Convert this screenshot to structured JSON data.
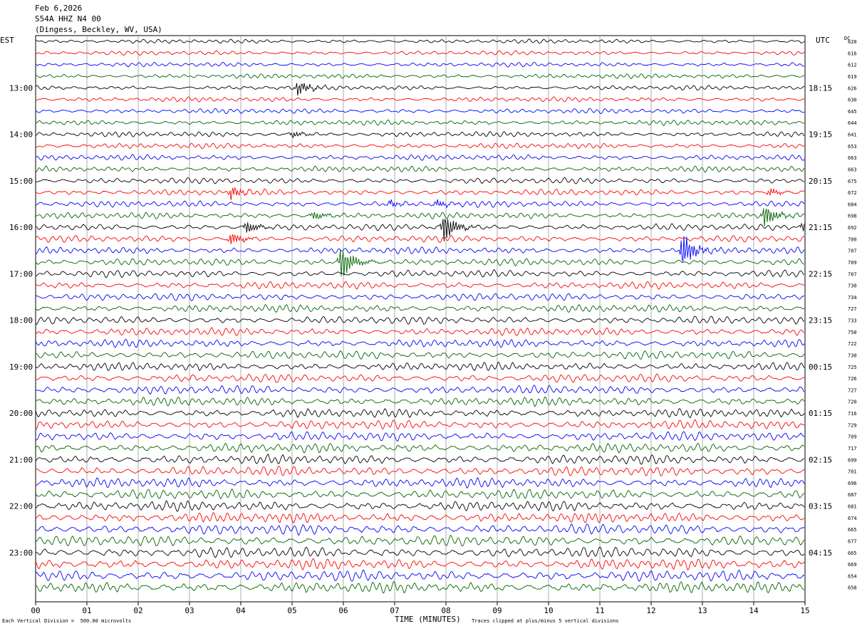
{
  "header": {
    "date": "Feb 6,2026",
    "station": "S54A HHZ N4 00",
    "location": "(Dingess, Beckley, WV, USA)"
  },
  "left_timezone": "EST",
  "right_timezone": "UTC",
  "dc_label": "DC",
  "footer": {
    "scale_note": "Each Vertical Division =  500.00 microvolts",
    "clip_note": "Traces clipped at plus/minus 5 vertical divisions"
  },
  "colors": [
    "#000000",
    "#ff0000",
    "#0000ff",
    "#006400"
  ],
  "chart_data": {
    "type": "line",
    "title": "",
    "xlabel": "TIME (MINUTES)",
    "x_ticks": [
      "00",
      "01",
      "02",
      "03",
      "04",
      "05",
      "06",
      "07",
      "08",
      "09",
      "10",
      "11",
      "12",
      "13",
      "14",
      "15"
    ],
    "xlim": [
      0,
      15
    ],
    "trace_minutes": 15,
    "left_hour_labels": [
      {
        "row": 4,
        "label": "13:00"
      },
      {
        "row": 8,
        "label": "14:00"
      },
      {
        "row": 12,
        "label": "15:00"
      },
      {
        "row": 16,
        "label": "16:00"
      },
      {
        "row": 20,
        "label": "17:00"
      },
      {
        "row": 24,
        "label": "18:00"
      },
      {
        "row": 28,
        "label": "19:00"
      },
      {
        "row": 32,
        "label": "20:00"
      },
      {
        "row": 36,
        "label": "21:00"
      },
      {
        "row": 40,
        "label": "22:00"
      },
      {
        "row": 44,
        "label": "23:00"
      }
    ],
    "right_hour_labels": [
      {
        "row": 4,
        "label": "18:15"
      },
      {
        "row": 8,
        "label": "19:15"
      },
      {
        "row": 12,
        "label": "20:15"
      },
      {
        "row": 16,
        "label": "21:15"
      },
      {
        "row": 20,
        "label": "22:15"
      },
      {
        "row": 24,
        "label": "23:15"
      },
      {
        "row": 28,
        "label": "00:15"
      },
      {
        "row": 32,
        "label": "01:15"
      },
      {
        "row": 36,
        "label": "02:15"
      },
      {
        "row": 40,
        "label": "03:15"
      },
      {
        "row": 44,
        "label": "04:15"
      }
    ],
    "dc_offsets": [
      "620",
      "616",
      "612",
      "619",
      "626",
      "630",
      "645",
      "644",
      "641",
      "653",
      "663",
      "663",
      "675",
      "672",
      "684",
      "698",
      "692",
      "700",
      "707",
      "709",
      "707",
      "730",
      "734",
      "727",
      "733",
      "750",
      "722",
      "730",
      "725",
      "726",
      "727",
      "720",
      "716",
      "729",
      "709",
      "717",
      "699",
      "701",
      "696",
      "687",
      "681",
      "674",
      "665",
      "677",
      "665",
      "669",
      "654",
      "658"
    ],
    "events": [
      {
        "row": 4,
        "minute": 5.1,
        "amplitude": 1.2
      },
      {
        "row": 8,
        "minute": 5.0,
        "amplitude": 0.5
      },
      {
        "row": 13,
        "minute": 3.8,
        "amplitude": 1.0
      },
      {
        "row": 13,
        "minute": 14.3,
        "amplitude": 0.6
      },
      {
        "row": 14,
        "minute": 6.9,
        "amplitude": 0.5
      },
      {
        "row": 14,
        "minute": 7.8,
        "amplitude": 0.6
      },
      {
        "row": 15,
        "minute": 5.4,
        "amplitude": 0.7
      },
      {
        "row": 15,
        "minute": 14.2,
        "amplitude": 1.8
      },
      {
        "row": 16,
        "minute": 4.1,
        "amplitude": 1.0
      },
      {
        "row": 16,
        "minute": 7.95,
        "amplitude": 2.5
      },
      {
        "row": 16,
        "minute": 14.95,
        "amplitude": 0.8
      },
      {
        "row": 17,
        "minute": 3.8,
        "amplitude": 1.0
      },
      {
        "row": 18,
        "minute": 12.6,
        "amplitude": 3.0
      },
      {
        "row": 19,
        "minute": 5.95,
        "amplitude": 2.8
      }
    ]
  }
}
